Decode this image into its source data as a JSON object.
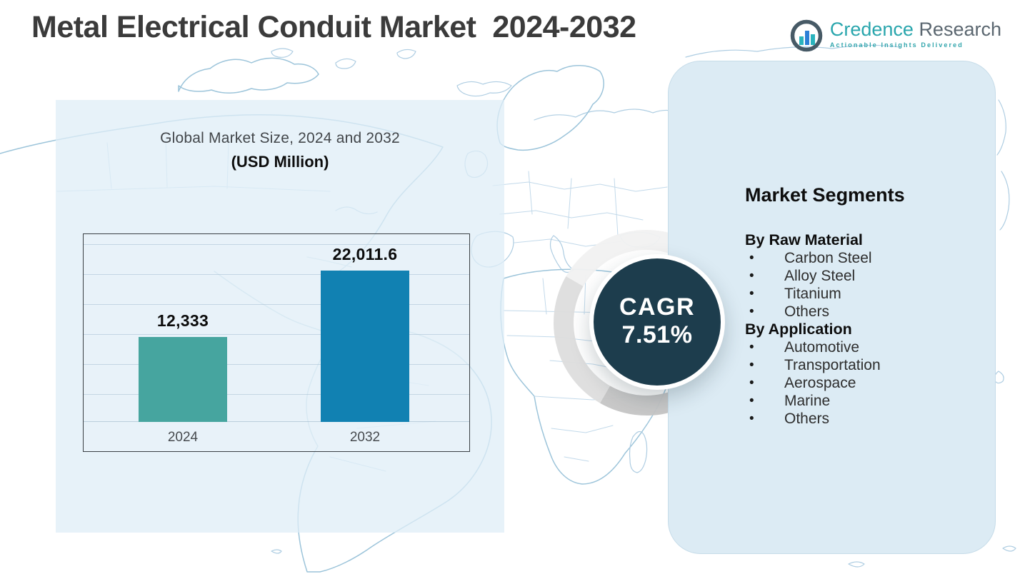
{
  "header": {
    "title": "Metal Electrical Conduit Market  2024-2032",
    "logo": {
      "name_primary": "Credence ",
      "name_secondary": "Research",
      "tagline": "Actionable Insights Delivered"
    }
  },
  "chart_panel": {
    "title_line1": "Global Market Size, 2024 and 2032",
    "title_line2": "(USD Million)"
  },
  "chart_data": {
    "type": "bar",
    "title": "Global Market Size, 2024 and 2032",
    "subtitle": "(USD Million)",
    "categories": [
      "2024",
      "2032"
    ],
    "values": [
      12333,
      22011.6
    ],
    "value_labels": [
      "12,333",
      "22,011.6"
    ],
    "series_colors": [
      "#46a59f",
      "#1181b2"
    ],
    "xlabel": "",
    "ylabel": "",
    "ylim": [
      0,
      27500
    ],
    "grid": true,
    "legend": false
  },
  "cagr_badge": {
    "label": "CAGR",
    "value": "7.51%",
    "circle_color": "#1d3d4d"
  },
  "segments_panel": {
    "heading": "Market Segments",
    "groups": [
      {
        "heading": "By Raw Material",
        "items": [
          "Carbon Steel",
          "Alloy Steel",
          "Titanium",
          "Others"
        ]
      },
      {
        "heading": "By Application",
        "items": [
          "Automotive",
          "Transportation",
          "Aerospace",
          "Marine",
          "Others"
        ]
      }
    ]
  },
  "colors": {
    "bar_2024": "#46a59f",
    "bar_2032": "#1181b2",
    "badge_circle": "#1d3d4d",
    "panel_left_bg": "#e3eef7",
    "panel_right_bg": "#dcebf4",
    "map_line": "#aecde2",
    "logo_teal": "#2aa6ad",
    "logo_slate": "#5b6770",
    "title_text": "#3b3b3b"
  }
}
